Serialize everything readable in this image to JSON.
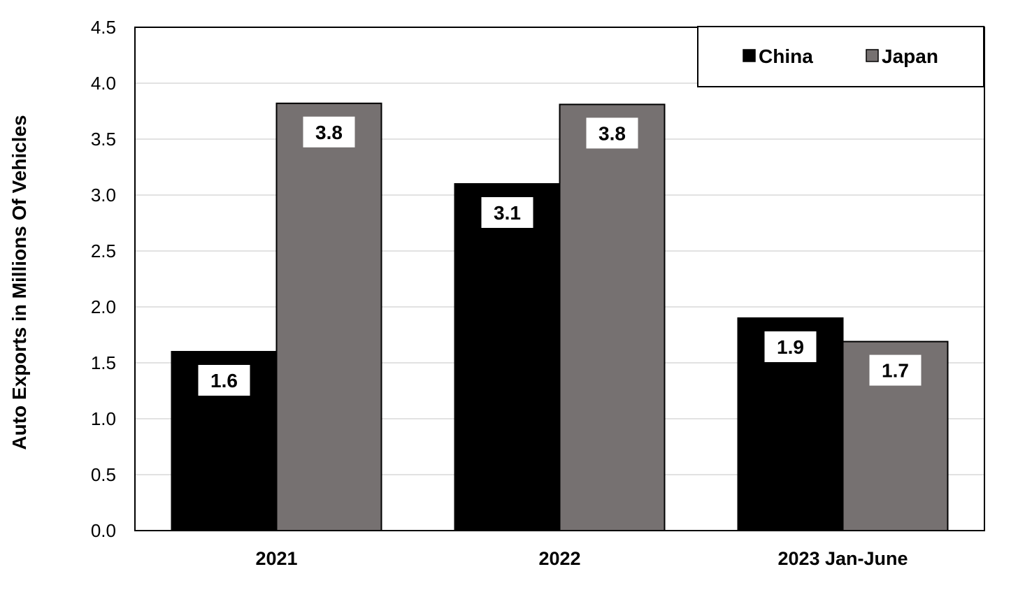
{
  "chart_data": {
    "type": "bar",
    "title": "",
    "xlabel": "",
    "ylabel": "Auto Exports in Millions Of Vehicles",
    "categories": [
      "2021",
      "2022",
      "2023 Jan-June"
    ],
    "series": [
      {
        "name": "China",
        "values": [
          1.6,
          3.1,
          1.9
        ],
        "labels": [
          "1.6",
          "3.1",
          "1.9"
        ],
        "color": "#000000"
      },
      {
        "name": "Japan",
        "values": [
          3.8,
          3.8,
          1.7
        ],
        "plot_values": [
          3.82,
          3.81,
          1.69
        ],
        "labels": [
          "3.8",
          "3.8",
          "1.7"
        ],
        "color": "#767171"
      }
    ],
    "ylim": [
      0,
      4.5
    ],
    "yticks": [
      "0.0",
      "0.5",
      "1.0",
      "1.5",
      "2.0",
      "2.5",
      "3.0",
      "3.5",
      "4.0",
      "4.5"
    ],
    "grid": true,
    "legend_position": "top-right",
    "gridline_color": "#d9d9d9"
  }
}
